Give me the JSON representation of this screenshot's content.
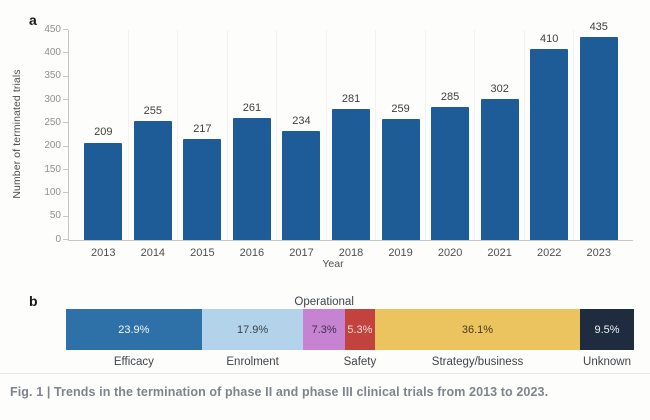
{
  "figure": {
    "panel_a_label": "a",
    "panel_b_label": "b",
    "caption": "Fig. 1 | Trends in the termination of phase II and phase III clinical trials from 2013 to 2023."
  },
  "colors": {
    "panel_a_bar": "#1e5c97",
    "axis_line": "#c6c6c6",
    "tick_label": "#8f8f8f",
    "value_label": "#3f3f3f",
    "caption_text": "#7e848c"
  },
  "chart_data": [
    {
      "panel": "a",
      "type": "bar",
      "categories": [
        "2013",
        "2014",
        "2015",
        "2016",
        "2017",
        "2018",
        "2019",
        "2020",
        "2021",
        "2022",
        "2023"
      ],
      "values": [
        209,
        255,
        217,
        261,
        234,
        281,
        259,
        285,
        302,
        410,
        435
      ],
      "title": "",
      "xlabel": "Year",
      "ylabel": "Number of terminated trials",
      "ylim": [
        0,
        450
      ],
      "yticks": [
        0,
        50,
        100,
        150,
        200,
        250,
        300,
        350,
        400,
        450
      ],
      "bar_color": "#1e5c97",
      "grid": "faint vertical column separators",
      "legend_position": "none",
      "value_labels": "above bars"
    },
    {
      "panel": "b",
      "type": "stacked-bar-horizontal",
      "total_pct": 100.0,
      "segments": [
        {
          "label": "Efficacy",
          "pct": 23.9,
          "pct_text": "23.9%",
          "color": "#2e71a9",
          "text_color": "#f2f6fa",
          "label_pos": "below"
        },
        {
          "label": "Enrolment",
          "pct": 17.9,
          "pct_text": "17.9%",
          "color": "#b2d3ea",
          "text_color": "#3b4149",
          "label_pos": "below"
        },
        {
          "label": "Operational",
          "pct": 7.3,
          "pct_text": "7.3%",
          "color": "#c583d2",
          "text_color": "#3e3246",
          "label_pos": "above"
        },
        {
          "label": "Safety",
          "pct": 5.3,
          "pct_text": "5.3%",
          "color": "#c2423e",
          "text_color": "#f6dcda",
          "label_pos": "below"
        },
        {
          "label": "Strategy/business",
          "pct": 36.1,
          "pct_text": "36.1%",
          "color": "#ecc45f",
          "text_color": "#473a1f",
          "label_pos": "below"
        },
        {
          "label": "Unknown",
          "pct": 9.5,
          "pct_text": "9.5%",
          "color": "#1f2b3e",
          "text_color": "#eef1f4",
          "label_pos": "below"
        }
      ]
    }
  ]
}
